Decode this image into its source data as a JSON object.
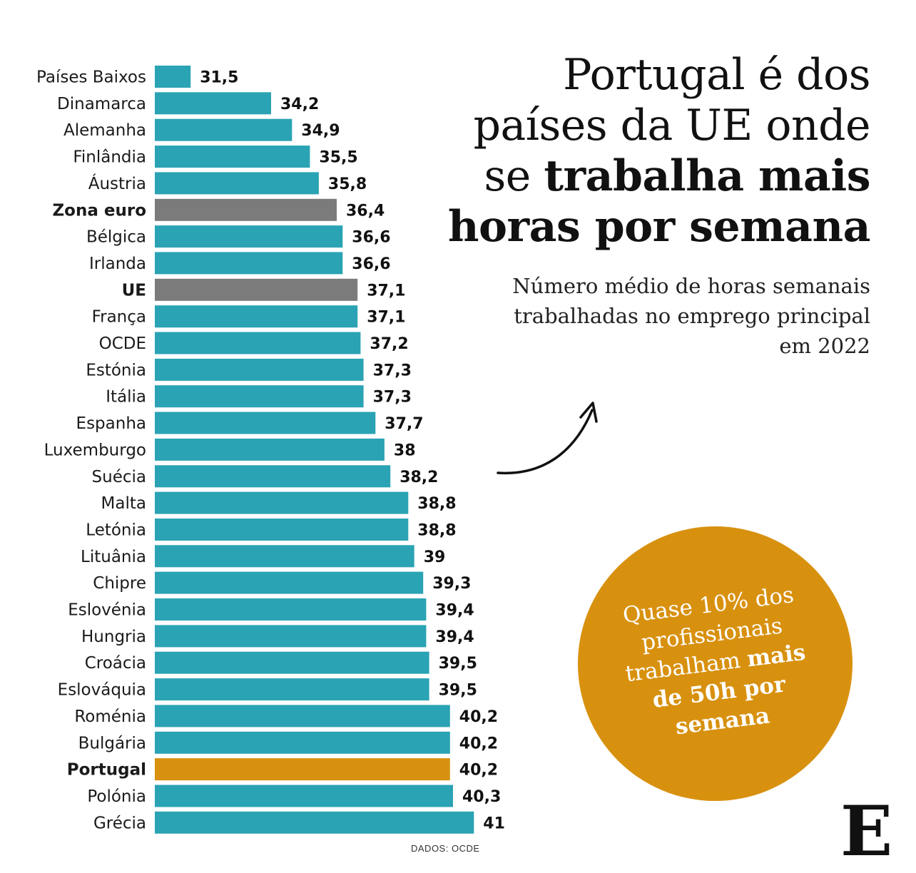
{
  "headline": {
    "part1": "Portugal é dos países da UE onde se ",
    "part2": "trabalha mais horas por semana"
  },
  "subtitle": "Número médio de horas semanais trabalhadas no emprego principal em 2022",
  "callout": {
    "part1": "Quase 10% dos profissionais trabalham ",
    "part2": "mais de 50h por semana"
  },
  "source": "DADOS: OCDE",
  "logo": "E",
  "colors": {
    "default": "#2aa3b4",
    "aggregate": "#7b7b7b",
    "highlight": "#d8910f"
  },
  "chart_data": {
    "type": "bar",
    "orientation": "horizontal",
    "title": "Número médio de horas semanais trabalhadas no emprego principal em 2022",
    "categories": [
      "Países Baixos",
      "Dinamarca",
      "Alemanha",
      "Finlândia",
      "Áustria",
      "Zona euro",
      "Bélgica",
      "Irlanda",
      "UE",
      "França",
      "OCDE",
      "Estónia",
      "Itália",
      "Espanha",
      "Luxemburgo",
      "Suécia",
      "Malta",
      "Letónia",
      "Lituânia",
      "Chipre",
      "Eslovénia",
      "Hungria",
      "Croácia",
      "Eslováquia",
      "Roménia",
      "Bulgária",
      "Portugal",
      "Polónia",
      "Grécia"
    ],
    "values": [
      31.5,
      34.2,
      34.9,
      35.5,
      35.8,
      36.4,
      36.6,
      36.6,
      37.1,
      37.1,
      37.2,
      37.3,
      37.3,
      37.7,
      38,
      38.2,
      38.8,
      38.8,
      39,
      39.3,
      39.4,
      39.4,
      39.5,
      39.5,
      40.2,
      40.2,
      40.2,
      40.3,
      41
    ],
    "value_labels": [
      "31,5",
      "34,2",
      "34,9",
      "35,5",
      "35,8",
      "36,4",
      "36,6",
      "36,6",
      "37,1",
      "37,1",
      "37,2",
      "37,3",
      "37,3",
      "37,7",
      "38",
      "38,2",
      "38,8",
      "38,8",
      "39",
      "39,3",
      "39,4",
      "39,4",
      "39,5",
      "39,5",
      "40,2",
      "40,2",
      "40,2",
      "40,3",
      "41"
    ],
    "kinds": [
      "default",
      "default",
      "default",
      "default",
      "default",
      "aggregate",
      "default",
      "default",
      "aggregate",
      "default",
      "default",
      "default",
      "default",
      "default",
      "default",
      "default",
      "default",
      "default",
      "default",
      "default",
      "default",
      "default",
      "default",
      "default",
      "default",
      "default",
      "highlight",
      "default",
      "default"
    ],
    "bold_labels": [
      "Zona euro",
      "UE",
      "Portugal"
    ],
    "xlim": [
      30.3,
      41
    ],
    "grid": false,
    "xlabel": "",
    "ylabel": ""
  }
}
